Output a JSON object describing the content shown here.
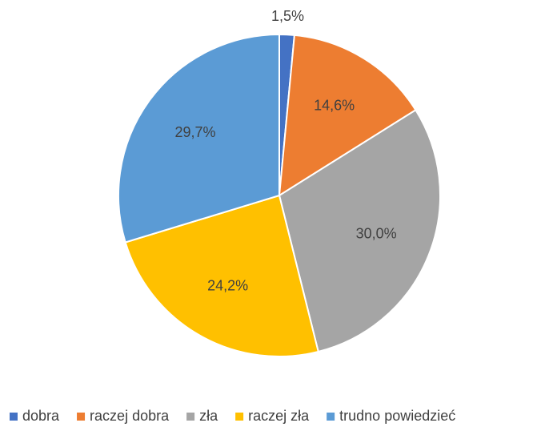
{
  "chart_data": {
    "type": "pie",
    "categories": [
      "dobra",
      "raczej dobra",
      "zła",
      "raczej zła",
      "trudno powiedzieć"
    ],
    "values": [
      1.5,
      14.6,
      30.0,
      24.2,
      29.7
    ],
    "value_labels": [
      "1,5%",
      "14,6%",
      "30,0%",
      "24,2%",
      "29,7%"
    ],
    "colors": [
      "#4472c4",
      "#ed7d31",
      "#a5a5a5",
      "#ffc000",
      "#5b9bd5"
    ],
    "legend": "bottom"
  }
}
